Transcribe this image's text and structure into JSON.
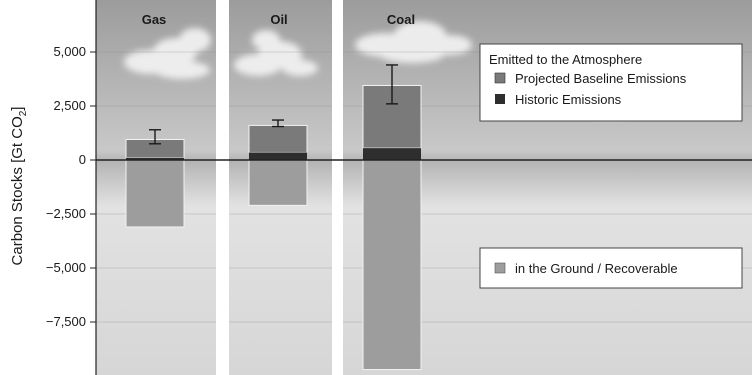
{
  "chart_data": {
    "type": "bar",
    "ylabel": "Carbon Stocks [Gt CO",
    "ylabel_sub": "2",
    "ylabel_close": "]",
    "ylim": [
      -9800,
      7000
    ],
    "yticks": [
      5000,
      2500,
      0,
      -2500,
      -5000,
      -7500
    ],
    "ytick_labels": [
      "5,000",
      "2,500",
      "0",
      "−2,500",
      "−5,000",
      "−7,500"
    ],
    "categories": [
      "Gas",
      "Oil",
      "Coal"
    ],
    "series": [
      {
        "name": "Historic Emissions",
        "values": [
          100,
          350,
          550
        ]
      },
      {
        "name": "Projected Baseline Emissions",
        "values": [
          850,
          1250,
          2900
        ]
      },
      {
        "name": "in the Ground / Recoverable",
        "values": [
          -3100,
          -2100,
          -9700
        ]
      }
    ],
    "error_bars": [
      {
        "category": "Gas",
        "low": 750,
        "high": 1400
      },
      {
        "category": "Oil",
        "low": 1550,
        "high": 1850
      },
      {
        "category": "Coal",
        "low": 2600,
        "high": 4400
      }
    ],
    "legend_top": {
      "title": "Emitted to the Atmosphere",
      "items": [
        "Projected Baseline Emissions",
        "Historic Emissions"
      ]
    },
    "legend_bottom": {
      "items": [
        "in the Ground / Recoverable"
      ]
    },
    "colors": {
      "historic": "#2e2e2e",
      "projected": "#7a7a7a",
      "ground": "#9d9d9d",
      "zero_line": "#222222",
      "panel_bg": "#bdbdbd"
    }
  }
}
